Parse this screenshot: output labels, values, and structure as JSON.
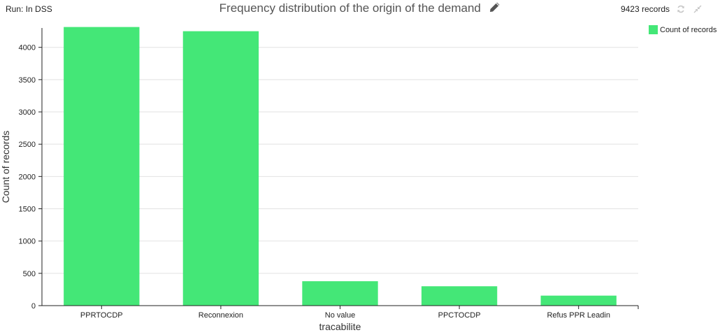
{
  "header": {
    "run_label": "Run: In DSS",
    "title": "Frequency distribution of the origin of the demand",
    "records": "9423 records"
  },
  "icons": {
    "edit": "pencil-icon",
    "refresh": "refresh-icon",
    "shrink": "shrink-icon"
  },
  "colors": {
    "bar": "#44e777",
    "grid": "#e2e2e2",
    "axis": "#222222"
  },
  "chart_data": {
    "type": "bar",
    "title": "Frequency distribution of the origin of the demand",
    "xlabel": "tracabilite",
    "ylabel": "Count of records",
    "categories": [
      "PPRTOCDP",
      "Reconnexion",
      "No value",
      "PPCTOCDP",
      "Refus PPR Leadin"
    ],
    "series": [
      {
        "name": "Count of records",
        "values": [
          4315,
          4250,
          378,
          300,
          155
        ]
      }
    ],
    "ylim": [
      0,
      4300
    ],
    "yticks": [
      0,
      500,
      1000,
      1500,
      2000,
      2500,
      3000,
      3500,
      4000
    ],
    "grid": true,
    "legend": "top-right"
  }
}
